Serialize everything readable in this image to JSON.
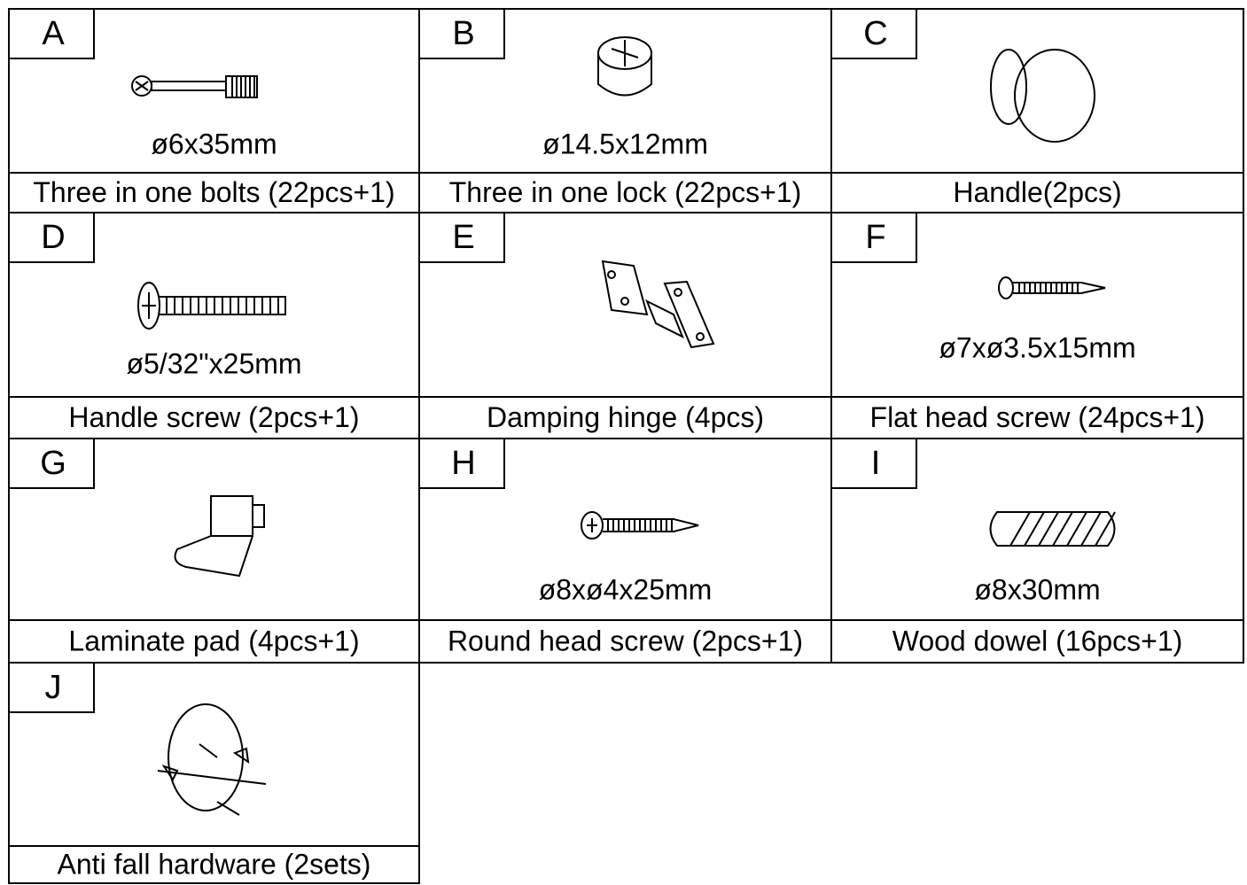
{
  "items": [
    {
      "letter": "A",
      "size": "ø6x35mm",
      "name": "Three in one bolts (22pcs+1)"
    },
    {
      "letter": "B",
      "size": "ø14.5x12mm",
      "name": "Three in one lock (22pcs+1)"
    },
    {
      "letter": "C",
      "name": "Handle(2pcs)"
    },
    {
      "letter": "D",
      "size": "ø5/32\"x25mm",
      "name": "Handle screw (2pcs+1)"
    },
    {
      "letter": "E",
      "name": "Damping hinge (4pcs)"
    },
    {
      "letter": "F",
      "size": "ø7xø3.5x15mm",
      "name": "Flat head screw (24pcs+1)"
    },
    {
      "letter": "G",
      "name": "Laminate pad (4pcs+1)"
    },
    {
      "letter": "H",
      "size": "ø8xø4x25mm",
      "name": "Round head screw (2pcs+1)"
    },
    {
      "letter": "I",
      "size": "ø8x30mm",
      "name": "Wood dowel (16pcs+1)"
    },
    {
      "letter": "J",
      "name": "Anti fall hardware (2sets)"
    }
  ]
}
